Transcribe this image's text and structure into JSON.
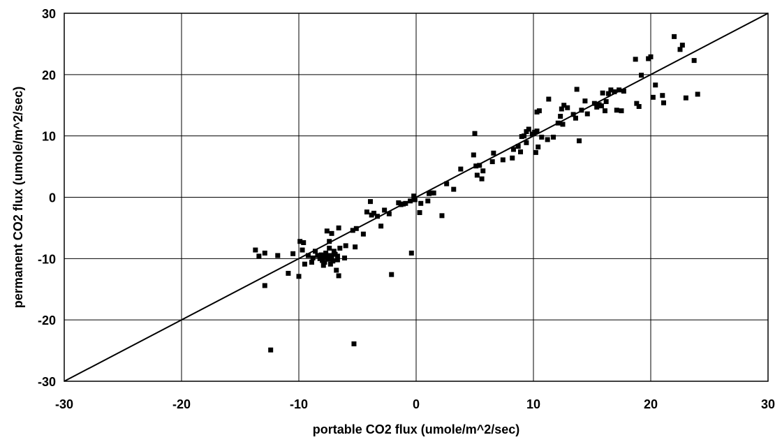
{
  "chart_data": {
    "type": "scatter",
    "xlabel": "portable CO2 flux (umole/m^2/sec)",
    "ylabel": "permanent CO2 flux (umole/m^2/sec)",
    "xlim": [
      -30,
      30
    ],
    "ylim": [
      -30,
      30
    ],
    "x_ticks": [
      -30,
      -20,
      -10,
      0,
      10,
      20,
      30
    ],
    "y_ticks": [
      -30,
      -20,
      -10,
      0,
      10,
      20,
      30
    ],
    "x_tick_labels": [
      "-30",
      "-20",
      "-10",
      "0",
      "10",
      "20",
      "30"
    ],
    "y_tick_labels": [
      "-30",
      "-20",
      "-10",
      "0",
      "10",
      "20",
      "30"
    ],
    "grid": true,
    "legend": "none",
    "reference_line": {
      "from": [
        -30,
        -30
      ],
      "to": [
        30,
        30
      ]
    },
    "marker": "square",
    "colors": {
      "points": "#000000",
      "grid": "#000000",
      "background": "#ffffff"
    },
    "points": [
      [
        -13.7,
        -8.6
      ],
      [
        -13.4,
        -9.6
      ],
      [
        -12.9,
        -9.1
      ],
      [
        -12.9,
        -14.4
      ],
      [
        -12.4,
        -24.9
      ],
      [
        -11.8,
        -9.5
      ],
      [
        -10.9,
        -12.4
      ],
      [
        -10.5,
        -9.2
      ],
      [
        -10.0,
        -12.9
      ],
      [
        -9.9,
        -7.2
      ],
      [
        -9.7,
        -8.6
      ],
      [
        -9.6,
        -7.4
      ],
      [
        -9.5,
        -10.9
      ],
      [
        -9.2,
        -9.5
      ],
      [
        -8.9,
        -10.6
      ],
      [
        -8.8,
        -9.9
      ],
      [
        -8.6,
        -8.8
      ],
      [
        -8.4,
        -9.5
      ],
      [
        -8.2,
        -10.0
      ],
      [
        -8.1,
        -9.4
      ],
      [
        -8.0,
        -10.3
      ],
      [
        -7.9,
        -11.1
      ],
      [
        -7.9,
        -9.6
      ],
      [
        -7.8,
        -10.6
      ],
      [
        -7.7,
        -9.1
      ],
      [
        -7.6,
        -9.8
      ],
      [
        -7.6,
        -5.5
      ],
      [
        -7.5,
        -10.1
      ],
      [
        -7.4,
        -8.3
      ],
      [
        -7.4,
        -7.2
      ],
      [
        -7.3,
        -9.5
      ],
      [
        -7.3,
        -10.9
      ],
      [
        -7.2,
        -9.8
      ],
      [
        -7.2,
        -5.9
      ],
      [
        -7.1,
        -10.4
      ],
      [
        -7.0,
        -8.8
      ],
      [
        -6.9,
        -9.3
      ],
      [
        -6.8,
        -11.9
      ],
      [
        -6.7,
        -9.6
      ],
      [
        -6.7,
        -10.2
      ],
      [
        -6.6,
        -5.0
      ],
      [
        -6.6,
        -12.8
      ],
      [
        -6.5,
        -8.3
      ],
      [
        -6.1,
        -9.9
      ],
      [
        -6.0,
        -7.9
      ],
      [
        -5.4,
        -5.4
      ],
      [
        -5.3,
        -23.9
      ],
      [
        -5.2,
        -8.1
      ],
      [
        -5.1,
        -5.1
      ],
      [
        -4.5,
        -6.0
      ],
      [
        -4.2,
        -2.4
      ],
      [
        -3.9,
        -0.7
      ],
      [
        -3.8,
        -2.9
      ],
      [
        -3.6,
        -2.6
      ],
      [
        -3.3,
        -3.1
      ],
      [
        -3.0,
        -4.7
      ],
      [
        -2.7,
        -2.1
      ],
      [
        -2.3,
        -2.7
      ],
      [
        -2.1,
        -12.6
      ],
      [
        -1.5,
        -0.9
      ],
      [
        -1.3,
        -1.2
      ],
      [
        -1.1,
        -1.1
      ],
      [
        -0.9,
        -1.0
      ],
      [
        -0.5,
        -0.6
      ],
      [
        -0.4,
        -9.1
      ],
      [
        -0.2,
        0.2
      ],
      [
        -0.1,
        -0.4
      ],
      [
        0.3,
        -2.5
      ],
      [
        0.4,
        -1.0
      ],
      [
        1.0,
        -0.6
      ],
      [
        1.1,
        0.6
      ],
      [
        1.3,
        0.7
      ],
      [
        1.5,
        0.7
      ],
      [
        2.2,
        -3.0
      ],
      [
        2.6,
        2.2
      ],
      [
        3.2,
        1.3
      ],
      [
        3.8,
        4.6
      ],
      [
        4.9,
        6.9
      ],
      [
        5.0,
        10.4
      ],
      [
        5.1,
        5.1
      ],
      [
        5.2,
        3.6
      ],
      [
        5.4,
        5.2
      ],
      [
        5.6,
        3.0
      ],
      [
        5.7,
        4.3
      ],
      [
        6.5,
        5.8
      ],
      [
        6.6,
        7.2
      ],
      [
        7.4,
        6.1
      ],
      [
        8.2,
        6.4
      ],
      [
        8.3,
        7.8
      ],
      [
        8.7,
        8.3
      ],
      [
        8.9,
        7.4
      ],
      [
        9.0,
        9.9
      ],
      [
        9.2,
        10.0
      ],
      [
        9.4,
        8.9
      ],
      [
        9.4,
        10.7
      ],
      [
        9.6,
        11.1
      ],
      [
        9.9,
        10.3
      ],
      [
        10.1,
        10.6
      ],
      [
        10.2,
        7.3
      ],
      [
        10.3,
        10.8
      ],
      [
        10.3,
        13.9
      ],
      [
        10.4,
        8.2
      ],
      [
        10.5,
        14.1
      ],
      [
        10.7,
        9.8
      ],
      [
        11.2,
        9.4
      ],
      [
        11.3,
        16.0
      ],
      [
        11.7,
        9.8
      ],
      [
        12.1,
        12.1
      ],
      [
        12.3,
        13.2
      ],
      [
        12.4,
        14.4
      ],
      [
        12.5,
        11.9
      ],
      [
        12.6,
        15.0
      ],
      [
        12.9,
        14.6
      ],
      [
        13.4,
        13.5
      ],
      [
        13.6,
        12.9
      ],
      [
        13.7,
        17.6
      ],
      [
        13.9,
        9.2
      ],
      [
        14.1,
        14.2
      ],
      [
        14.4,
        15.7
      ],
      [
        14.6,
        13.6
      ],
      [
        15.2,
        15.3
      ],
      [
        15.4,
        14.7
      ],
      [
        15.6,
        15.1
      ],
      [
        15.8,
        14.9
      ],
      [
        15.9,
        17.0
      ],
      [
        16.1,
        14.1
      ],
      [
        16.2,
        15.6
      ],
      [
        16.4,
        16.9
      ],
      [
        16.6,
        17.5
      ],
      [
        16.9,
        17.2
      ],
      [
        17.1,
        14.2
      ],
      [
        17.3,
        17.5
      ],
      [
        17.5,
        14.1
      ],
      [
        17.7,
        17.3
      ],
      [
        18.7,
        22.5
      ],
      [
        18.8,
        15.3
      ],
      [
        19.0,
        14.8
      ],
      [
        19.2,
        19.9
      ],
      [
        19.8,
        22.6
      ],
      [
        20.0,
        22.9
      ],
      [
        20.2,
        16.3
      ],
      [
        20.4,
        18.3
      ],
      [
        21.0,
        16.6
      ],
      [
        21.1,
        15.4
      ],
      [
        22.0,
        26.2
      ],
      [
        22.5,
        24.1
      ],
      [
        22.7,
        24.8
      ],
      [
        23.0,
        16.2
      ],
      [
        23.7,
        22.3
      ],
      [
        24.0,
        16.8
      ]
    ]
  }
}
